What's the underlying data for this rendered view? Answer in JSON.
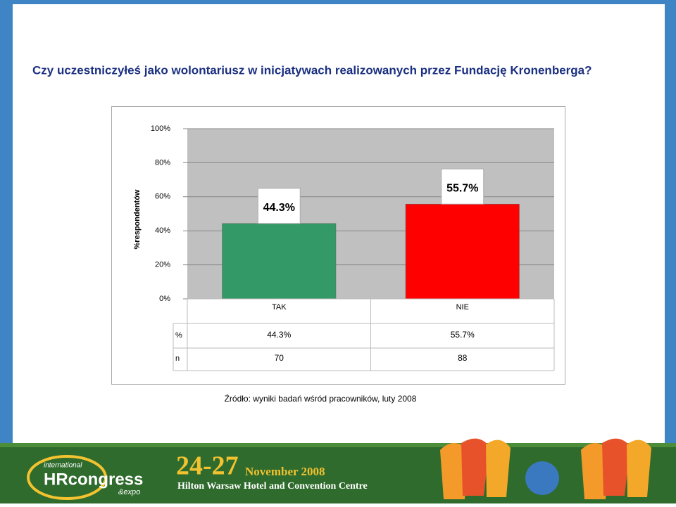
{
  "chart_data": {
    "type": "bar",
    "title": "Czy uczestniczyłeś jako wolontariusz w inicjatywach realizowanych przez Fundację Kronenberga?",
    "ylabel": "%respondentów",
    "categories": [
      "TAK",
      "NIE"
    ],
    "values": [
      44.3,
      55.7
    ],
    "value_labels": [
      "44.3%",
      "55.7%"
    ],
    "colors": [
      "#339966",
      "#ff0000"
    ],
    "ylim": [
      0,
      100
    ],
    "yticks": [
      {
        "value": 0,
        "label": "0%"
      },
      {
        "value": 20,
        "label": "20%"
      },
      {
        "value": 40,
        "label": "40%"
      },
      {
        "value": 60,
        "label": "60%"
      },
      {
        "value": 80,
        "label": "80%"
      },
      {
        "value": 100,
        "label": "100%"
      }
    ],
    "grid": true,
    "table": [
      [
        "%",
        "44.3%",
        "55.7%"
      ],
      [
        "n",
        70,
        88
      ]
    ],
    "source": "Źródło: wyniki badań wśród pracowników, luty 2008"
  },
  "banner": {
    "international": "international",
    "brand": "HRcongress",
    "expo": "&expo",
    "dates": "24-27",
    "month": "November 2008",
    "venue": "Hilton Warsaw Hotel and Convention Centre"
  }
}
